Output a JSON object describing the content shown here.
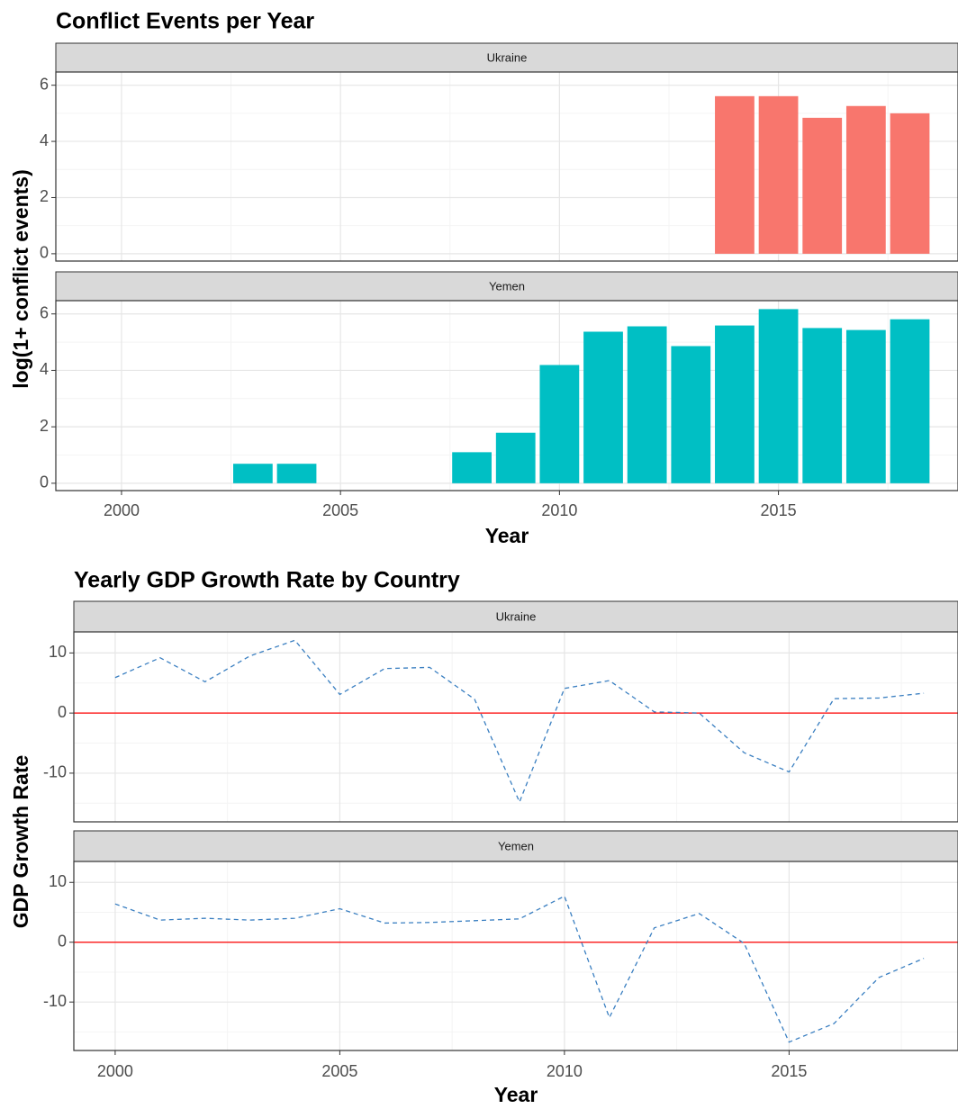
{
  "chart_data": [
    {
      "type": "bar",
      "title": "Conflict Events per Year",
      "x_label": "Year",
      "y_label": "log(1+ conflict events)",
      "xlim": [
        1998.5,
        2019.1
      ],
      "xticks": [
        2000,
        2005,
        2010,
        2015
      ],
      "xminor": [
        2002.5,
        2007.5,
        2012.5,
        2017.5
      ],
      "ylim": [
        -0.26,
        6.47
      ],
      "yticks": [
        0,
        2,
        4,
        6
      ],
      "yminor": [
        1,
        3,
        5
      ],
      "grid": true,
      "facets": [
        {
          "name": "Ukraine",
          "color": "#f8766d",
          "x": [
            2014,
            2015,
            2016,
            2017,
            2018
          ],
          "values": [
            5.61,
            5.61,
            4.84,
            5.26,
            5.0
          ]
        },
        {
          "name": "Yemen",
          "color": "#00bfc4",
          "x": [
            2003,
            2004,
            2008,
            2009,
            2010,
            2011,
            2012,
            2013,
            2014,
            2015,
            2016,
            2017,
            2018
          ],
          "values": [
            0.69,
            0.69,
            1.1,
            1.79,
            4.19,
            5.37,
            5.56,
            4.86,
            5.59,
            6.17,
            5.5,
            5.43,
            5.81
          ]
        }
      ]
    },
    {
      "type": "line",
      "title": "Yearly GDP Growth Rate by Country",
      "x_label": "Year",
      "y_label": "GDP Growth Rate",
      "xlim": [
        1999.08,
        2018.76
      ],
      "xticks": [
        2000,
        2005,
        2010,
        2015
      ],
      "xminor": [
        2002.5,
        2007.5,
        2012.5,
        2017.5
      ],
      "ylim": [
        -18.1,
        13.5
      ],
      "yticks": [
        -10,
        0,
        10
      ],
      "yminor": [
        -15,
        -5,
        5
      ],
      "grid": true,
      "hline": 0,
      "hline_color": "#ff0000",
      "line_style": "dashed",
      "facets": [
        {
          "name": "Ukraine",
          "color": "#3a7fc1",
          "x": [
            2000,
            2001,
            2002,
            2003,
            2004,
            2005,
            2006,
            2007,
            2008,
            2009,
            2010,
            2011,
            2012,
            2013,
            2014,
            2015,
            2016,
            2017,
            2018
          ],
          "values": [
            5.9,
            9.2,
            5.2,
            9.5,
            12.1,
            3.1,
            7.4,
            7.6,
            2.3,
            -14.8,
            4.1,
            5.4,
            0.2,
            0,
            -6.6,
            -9.8,
            2.4,
            2.5,
            3.3
          ]
        },
        {
          "name": "Yemen",
          "color": "#3a7fc1",
          "x": [
            2000,
            2001,
            2002,
            2003,
            2004,
            2005,
            2006,
            2007,
            2008,
            2009,
            2010,
            2011,
            2012,
            2013,
            2014,
            2015,
            2016,
            2017,
            2018
          ],
          "values": [
            6.4,
            3.7,
            4.0,
            3.7,
            4.0,
            5.6,
            3.2,
            3.3,
            3.6,
            3.9,
            7.7,
            -12.6,
            2.4,
            4.8,
            -0.2,
            -16.7,
            -13.6,
            -5.9,
            -2.7
          ]
        }
      ]
    }
  ]
}
